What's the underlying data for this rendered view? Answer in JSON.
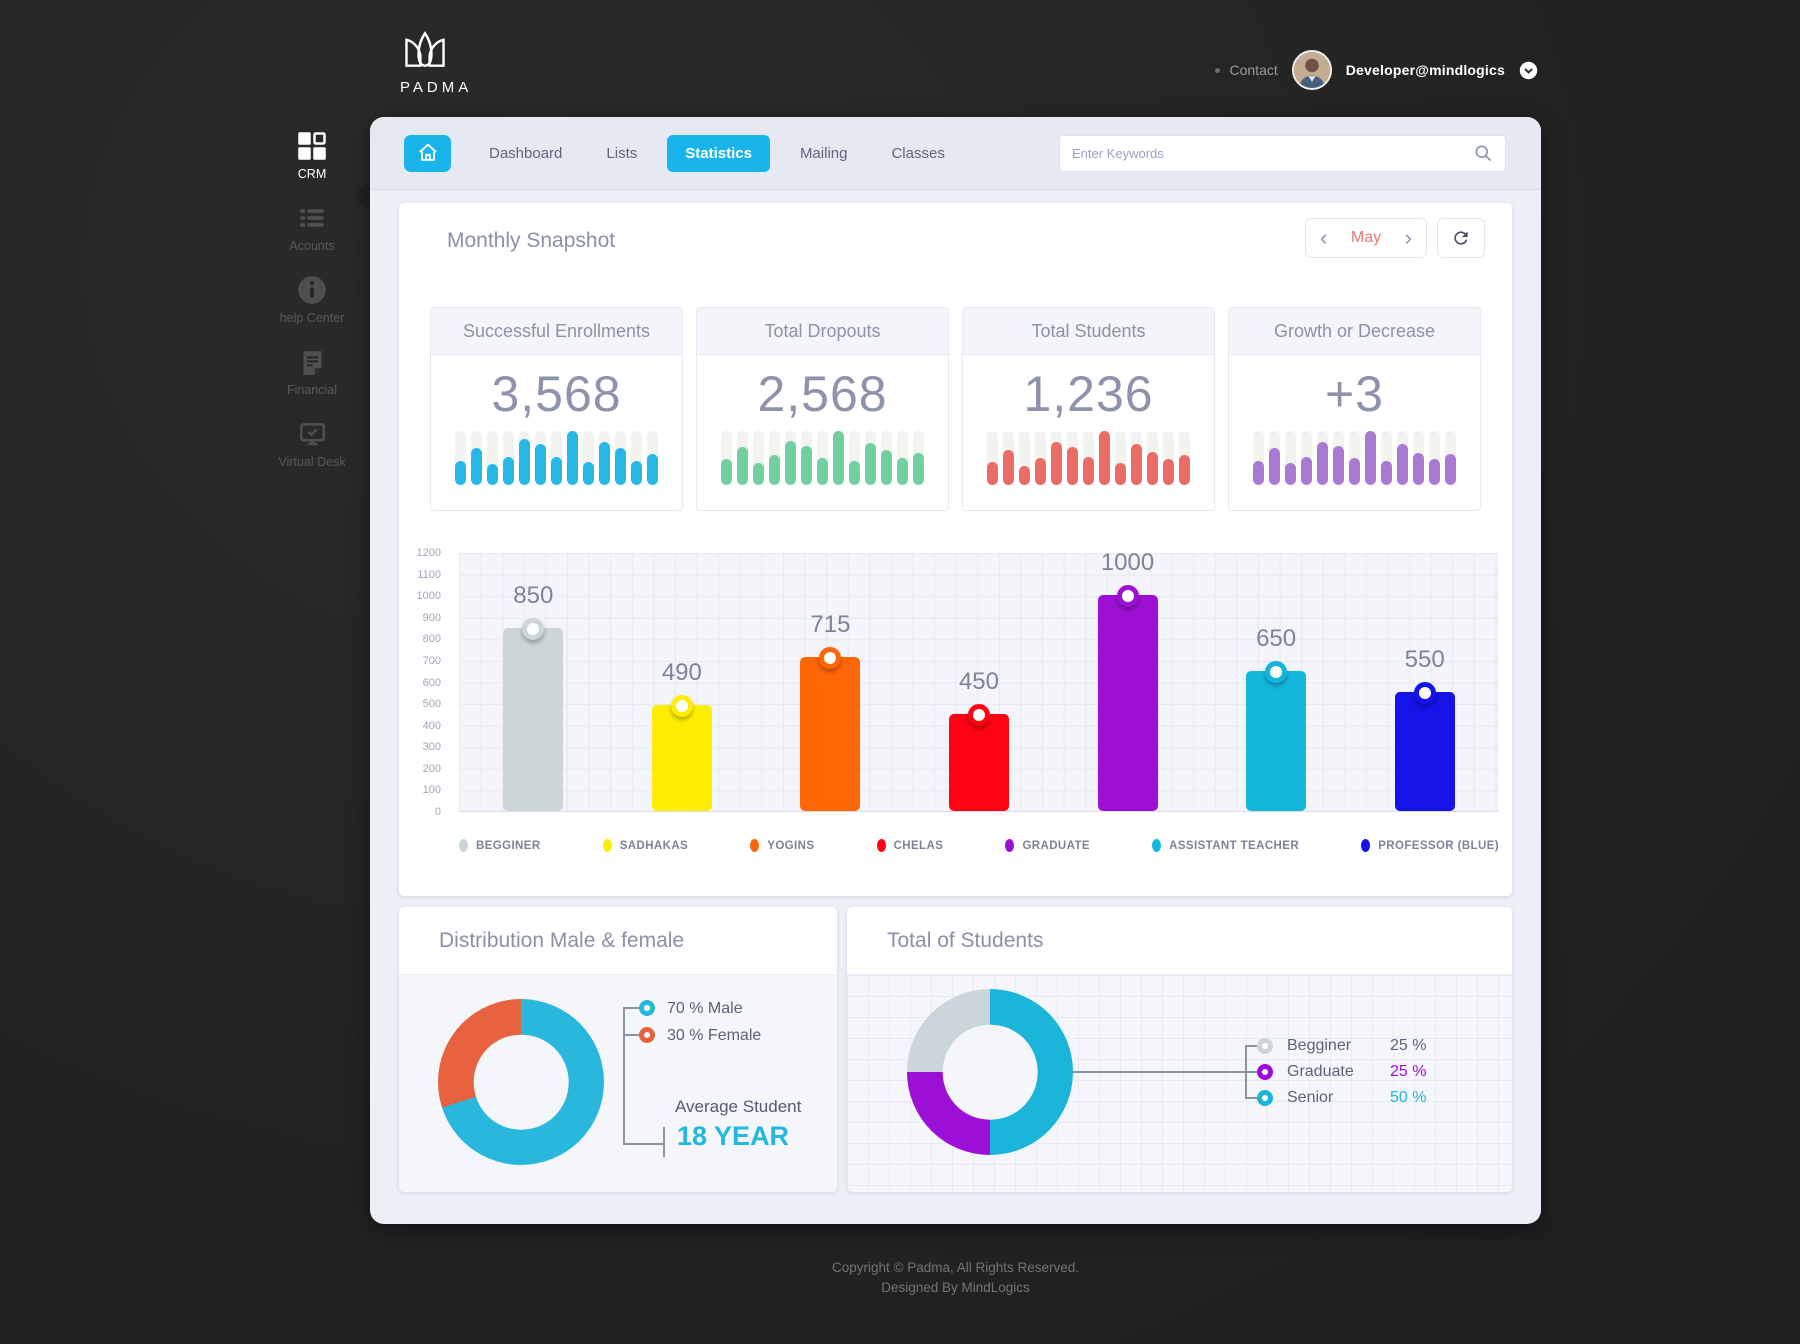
{
  "colors": {
    "accent": "#19b5ea",
    "month": "#e87a72",
    "panel": "#edeff6"
  },
  "brand": {
    "name": "PADMA"
  },
  "header": {
    "contact_label": "Contact",
    "user_email": "Developer@mindlogics"
  },
  "sidebar": {
    "items": [
      {
        "label": "CRM",
        "icon": "grid",
        "active": true
      },
      {
        "label": "Acounts",
        "icon": "list",
        "active": false
      },
      {
        "label": "help Center",
        "icon": "info",
        "active": false
      },
      {
        "label": "Financial",
        "icon": "document",
        "active": false
      },
      {
        "label": "Virtual Desk",
        "icon": "monitor-check",
        "active": false
      }
    ]
  },
  "nav": {
    "tabs": [
      {
        "label": "Dashboard",
        "active": false
      },
      {
        "label": "Lists",
        "active": false
      },
      {
        "label": "Statistics",
        "active": true
      },
      {
        "label": "Mailing",
        "active": false
      },
      {
        "label": "Classes",
        "active": false
      }
    ],
    "search_placeholder": "Enter Keywords"
  },
  "snapshot": {
    "title": "Monthly Snapshot",
    "month": "May",
    "prev": "‹",
    "next": "›"
  },
  "stat_cards": [
    {
      "title": "Successful Enrollments",
      "value": "3,568",
      "color": "#29b7e8",
      "bars": [
        45,
        68,
        38,
        52,
        85,
        75,
        52,
        100,
        42,
        80,
        68,
        45,
        58
      ]
    },
    {
      "title": "Total Dropouts",
      "value": "2,568",
      "color": "#72cfa2",
      "bars": [
        48,
        70,
        40,
        55,
        82,
        72,
        50,
        100,
        45,
        78,
        65,
        50,
        60
      ]
    },
    {
      "title": "Total Students",
      "value": "1,236",
      "color": "#e86d67",
      "bars": [
        42,
        65,
        35,
        50,
        80,
        70,
        52,
        100,
        40,
        75,
        62,
        48,
        55
      ]
    },
    {
      "title": "Growth or Decrease",
      "value": "+3",
      "color": "#a87bd1",
      "bars": [
        45,
        68,
        40,
        52,
        80,
        72,
        50,
        100,
        45,
        75,
        60,
        48,
        58
      ]
    }
  ],
  "chart_data": [
    {
      "type": "bar",
      "title": "Monthly Snapshot",
      "categories": [
        "BEGGINER",
        "SADHAKAS",
        "YOGINS",
        "CHELAS",
        "GRADUATE",
        "ASSISTANT TEACHER",
        "PROFESSOR (BLUE)"
      ],
      "values": [
        850,
        490,
        715,
        450,
        1000,
        650,
        550
      ],
      "colors": [
        "#ccd6d6",
        "#ffee02",
        "#ff6606",
        "#fe0413",
        "#9c10d3",
        "#14b6dc",
        "#1513e8"
      ],
      "xlabel": "",
      "ylabel": "",
      "ylim": [
        0,
        1200
      ],
      "ytick_step": 100,
      "grid": true,
      "legend_position": "bottom"
    },
    {
      "type": "pie",
      "title": "Distribution Male & female",
      "labels": [
        "70 % Male",
        "30 % Female"
      ],
      "values": [
        70,
        30
      ],
      "colors": [
        "#2ab7dd",
        "#e8623f"
      ],
      "note_label": "Average Student",
      "note_value": "18 YEAR",
      "note_value_color": "#26b7e0",
      "legend_position": "right"
    },
    {
      "type": "pie",
      "title": "Total of Students",
      "labels": [
        "Begginer",
        "Graduate",
        "Senior"
      ],
      "values": [
        25,
        25,
        50
      ],
      "colors": [
        "#ccd5d9",
        "#9b0fd6",
        "#1cb5da"
      ],
      "value_labels": [
        "25 %",
        "25 %",
        "50 %"
      ],
      "value_colors": [
        "#5c6375",
        "#9b0fd6",
        "#1cb5da"
      ],
      "slice_order": [
        {
          "value": 50,
          "color": "#1cb5da"
        },
        {
          "value": 25,
          "color": "#9b0fd6"
        },
        {
          "value": 25,
          "color": "#ccd5d9"
        }
      ],
      "legend_position": "right"
    }
  ],
  "footer": {
    "line1": "Copyright © Padma, All Rights Reserved.",
    "line2": "Designed By MindLogics"
  }
}
